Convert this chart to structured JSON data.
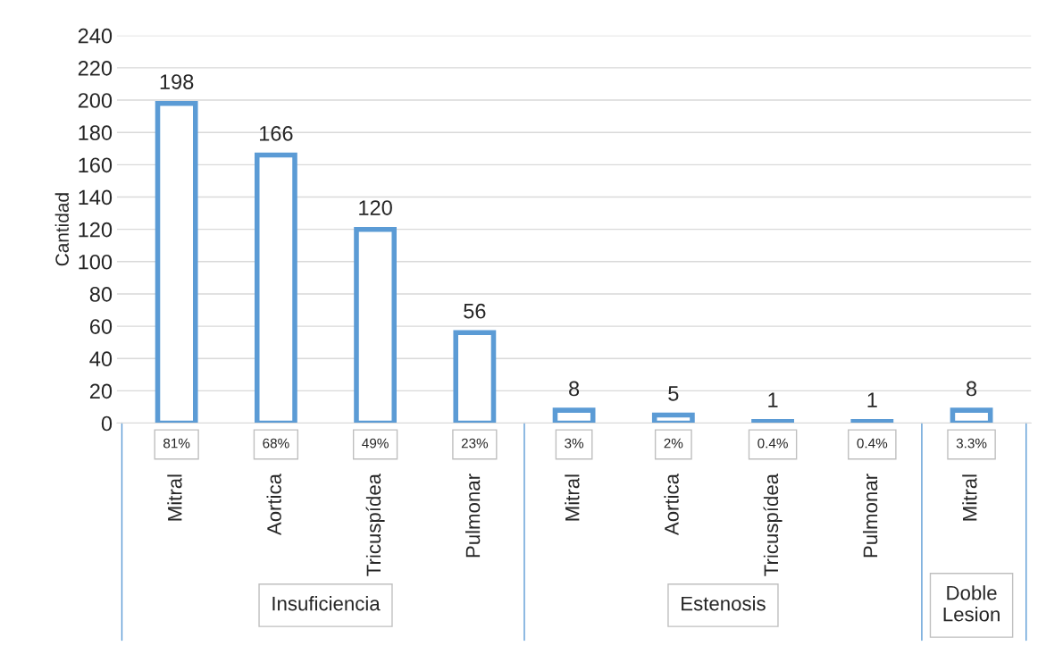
{
  "chart_data": {
    "type": "bar",
    "ylabel": "Cantidad",
    "categories": [
      "Mitral",
      "Aortica",
      "Tricuspídea",
      "Pulmonar",
      "Mitral",
      "Aortica",
      "Tricuspídea",
      "Pulmonar",
      "Mitral"
    ],
    "values": [
      198,
      166,
      120,
      56,
      8,
      5,
      1,
      1,
      8
    ],
    "color": "#5b9bd5",
    "data_labels": true,
    "ylim": [
      0,
      240
    ],
    "yticks": [
      0,
      20,
      40,
      60,
      80,
      100,
      120,
      140,
      160,
      180,
      200,
      220,
      240
    ],
    "grid": "y",
    "annotations": [
      "81%",
      "68%",
      "49%",
      "23%",
      "3%",
      "2%",
      "0.4%",
      "0.4%",
      "3.3%",
      "Insuficiencia",
      "Estenosis",
      "Doble\nLesion"
    ]
  }
}
